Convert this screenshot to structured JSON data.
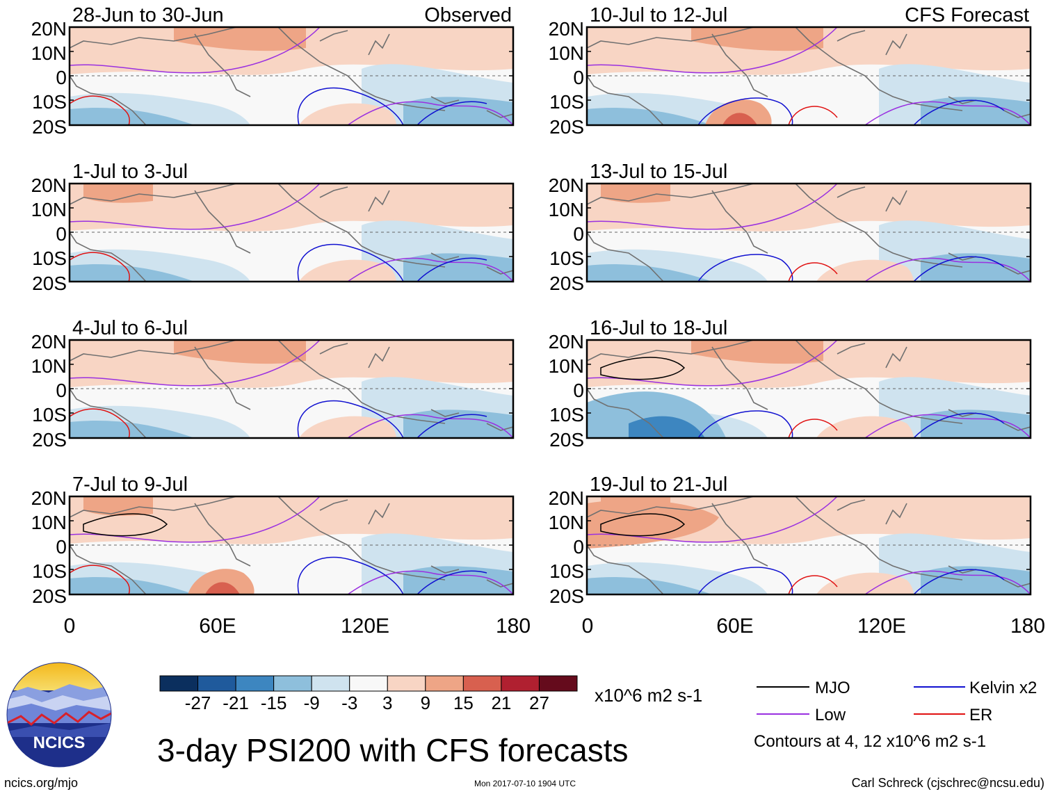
{
  "figure": {
    "title": "3-day PSI200 with CFS forecasts",
    "source_url": "ncics.org/mjo",
    "timestamp": "Mon 2017-07-10 1904 UTC",
    "author": "Carl Schreck (cjschrec@ncsu.edu)",
    "logo_text": "NCICS"
  },
  "axes": {
    "lat_labels": [
      "20N",
      "10N",
      "0",
      "10S",
      "20S"
    ],
    "lon_labels": [
      "0",
      "60E",
      "120E",
      "180"
    ]
  },
  "panels_left": [
    {
      "title": "28-Jun to 30-Jun",
      "tag": "Observed"
    },
    {
      "title": "1-Jul to 3-Jul",
      "tag": ""
    },
    {
      "title": "4-Jul to 6-Jul",
      "tag": ""
    },
    {
      "title": "7-Jul to 9-Jul",
      "tag": ""
    }
  ],
  "panels_right": [
    {
      "title": "10-Jul to 12-Jul",
      "tag": "CFS Forecast"
    },
    {
      "title": "13-Jul to 15-Jul",
      "tag": ""
    },
    {
      "title": "16-Jul to 18-Jul",
      "tag": ""
    },
    {
      "title": "19-Jul to 21-Jul",
      "tag": ""
    }
  ],
  "colorbar": {
    "units": "x10^6 m2 s-1",
    "ticks": [
      "-27",
      "-21",
      "-15",
      "-9",
      "-3",
      "3",
      "9",
      "15",
      "21",
      "27"
    ],
    "colors": [
      "#0b2f5e",
      "#1f5a9c",
      "#3d86c0",
      "#8ebfdc",
      "#cfe3ef",
      "#f8f8f8",
      "#f8d5c4",
      "#eea586",
      "#d8604f",
      "#b02030",
      "#650b1c"
    ]
  },
  "legend": {
    "items": [
      {
        "label": "MJO",
        "color": "#000000"
      },
      {
        "label": "Kelvin x2",
        "color": "#1010d0"
      },
      {
        "label": "Low",
        "color": "#9a30e0"
      },
      {
        "label": "ER",
        "color": "#e01010"
      }
    ],
    "note": "Contours at 4, 12 x10^6 m2 s-1"
  }
}
